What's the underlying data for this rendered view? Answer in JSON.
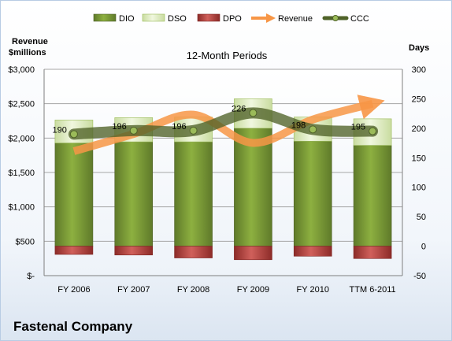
{
  "company": "Fastenal Company",
  "chart_data": {
    "type": "bar",
    "title": "12-Month Periods",
    "left_axis_label": [
      "Revenue",
      "$millions"
    ],
    "right_axis_label": "Days",
    "categories": [
      "FY 2006",
      "FY 2007",
      "FY 2008",
      "FY 2009",
      "FY 2010",
      "TTM 6-2011"
    ],
    "left_ticks": [
      "$-",
      "$500",
      "$1,000",
      "$1,500",
      "$2,000",
      "$2,500",
      "$3,000"
    ],
    "right_ticks": [
      "-50",
      "0",
      "50",
      "100",
      "150",
      "200",
      "250",
      "300"
    ],
    "left_range": [
      0,
      3000
    ],
    "right_range": [
      -50,
      300
    ],
    "grid": true,
    "legend_position": "top",
    "series": [
      {
        "name": "DIO",
        "kind": "stacked-bar",
        "axis": "right",
        "color": "#77933c",
        "values": [
          175,
          177,
          177,
          200,
          178,
          171
        ]
      },
      {
        "name": "DSO",
        "kind": "stacked-bar",
        "axis": "right",
        "color": "#d7e4bd",
        "values": [
          39,
          41,
          42,
          50,
          41,
          45
        ]
      },
      {
        "name": "DPO",
        "kind": "negative-bar",
        "axis": "right",
        "color": "#c0504d",
        "values": [
          -14,
          -15,
          -20,
          -23,
          -17,
          -21
        ]
      },
      {
        "name": "Revenue",
        "kind": "arrow-line",
        "axis": "left",
        "color": "#f79646",
        "values": [
          1810,
          2060,
          2340,
          1930,
          2270,
          2500
        ]
      },
      {
        "name": "CCC",
        "kind": "line",
        "axis": "right",
        "color": "#4f6228",
        "values": [
          190,
          196,
          196,
          226,
          198,
          195
        ]
      }
    ],
    "ccc_labels": [
      "190",
      "196",
      "196",
      "226",
      "198",
      "195"
    ]
  }
}
